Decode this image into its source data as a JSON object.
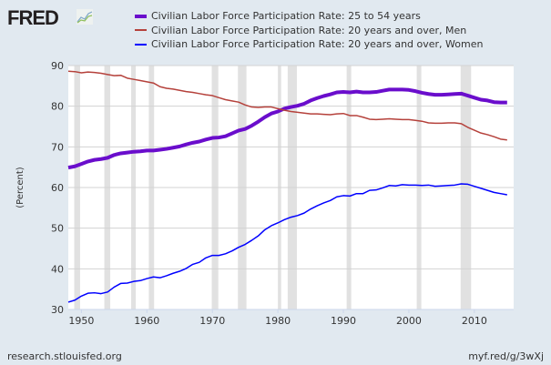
{
  "header": {
    "logo": "FRED"
  },
  "footer": {
    "source": "research.stlouisfed.org",
    "link": "myf.red/g/3wXj"
  },
  "chart_data": {
    "type": "line",
    "title": "",
    "xlabel": "",
    "ylabel": "(Percent)",
    "xlim": [
      1948,
      2016
    ],
    "ylim": [
      30,
      90
    ],
    "yticks": [
      30,
      40,
      50,
      60,
      70,
      80,
      90
    ],
    "xticks": [
      1950,
      1960,
      1970,
      1980,
      1990,
      2000,
      2010
    ],
    "grid": true,
    "legend_position": "top",
    "recessions": [
      [
        1948.9,
        1949.8
      ],
      [
        1953.5,
        1954.4
      ],
      [
        1957.6,
        1958.3
      ],
      [
        1960.3,
        1961.1
      ],
      [
        1969.9,
        1970.9
      ],
      [
        1973.9,
        1975.2
      ],
      [
        1980.0,
        1980.5
      ],
      [
        1981.5,
        1982.9
      ],
      [
        1990.5,
        1991.2
      ],
      [
        2001.2,
        2001.9
      ],
      [
        2007.9,
        2009.5
      ]
    ],
    "x": [
      1948,
      1949,
      1950,
      1951,
      1952,
      1953,
      1954,
      1955,
      1956,
      1957,
      1958,
      1959,
      1960,
      1961,
      1962,
      1963,
      1964,
      1965,
      1966,
      1967,
      1968,
      1969,
      1970,
      1971,
      1972,
      1973,
      1974,
      1975,
      1976,
      1977,
      1978,
      1979,
      1980,
      1981,
      1982,
      1983,
      1984,
      1985,
      1986,
      1987,
      1988,
      1989,
      1990,
      1991,
      1992,
      1993,
      1994,
      1995,
      1996,
      1997,
      1998,
      1999,
      2000,
      2001,
      2002,
      2003,
      2004,
      2005,
      2006,
      2007,
      2008,
      2009,
      2010,
      2011,
      2012,
      2013,
      2014,
      2015
    ],
    "series": [
      {
        "name": "Civilian Labor Force Participation Rate: 25 to 54 years",
        "color": "#6a0dcc",
        "width": 4,
        "values": [
          64.9,
          65.2,
          65.8,
          66.4,
          66.8,
          67.0,
          67.3,
          68.0,
          68.4,
          68.6,
          68.8,
          68.9,
          69.1,
          69.1,
          69.3,
          69.5,
          69.8,
          70.1,
          70.6,
          71.0,
          71.3,
          71.8,
          72.2,
          72.3,
          72.6,
          73.3,
          74.0,
          74.4,
          75.2,
          76.2,
          77.3,
          78.2,
          78.7,
          79.4,
          79.8,
          80.1,
          80.6,
          81.4,
          82.0,
          82.5,
          82.9,
          83.4,
          83.5,
          83.4,
          83.6,
          83.4,
          83.4,
          83.5,
          83.8,
          84.1,
          84.1,
          84.1,
          84.0,
          83.7,
          83.3,
          83.0,
          82.8,
          82.8,
          82.9,
          83.0,
          83.1,
          82.6,
          82.1,
          81.6,
          81.4,
          81.0,
          80.9,
          80.9
        ]
      },
      {
        "name": "Civilian Labor Force Participation Rate: 20 years and over, Men",
        "color": "#b5413b",
        "width": 1.5,
        "values": [
          88.6,
          88.5,
          88.2,
          88.4,
          88.3,
          88.1,
          87.8,
          87.5,
          87.6,
          86.9,
          86.6,
          86.3,
          86.0,
          85.7,
          84.8,
          84.4,
          84.2,
          83.9,
          83.6,
          83.4,
          83.1,
          82.8,
          82.6,
          82.1,
          81.6,
          81.3,
          81.0,
          80.3,
          79.8,
          79.7,
          79.8,
          79.8,
          79.4,
          79.0,
          78.7,
          78.5,
          78.3,
          78.1,
          78.1,
          78.0,
          77.9,
          78.1,
          78.2,
          77.7,
          77.7,
          77.3,
          76.8,
          76.7,
          76.8,
          76.9,
          76.8,
          76.7,
          76.7,
          76.5,
          76.3,
          75.9,
          75.8,
          75.8,
          75.9,
          75.9,
          75.7,
          74.8,
          74.1,
          73.4,
          73.0,
          72.5,
          71.9,
          71.7
        ]
      },
      {
        "name": "Civilian Labor Force Participation Rate: 20 years and over, Women",
        "color": "#0000ff",
        "width": 1.5,
        "values": [
          31.8,
          32.3,
          33.3,
          34.0,
          34.1,
          33.9,
          34.3,
          35.5,
          36.4,
          36.5,
          36.9,
          37.1,
          37.6,
          38.0,
          37.8,
          38.3,
          38.9,
          39.4,
          40.1,
          41.1,
          41.6,
          42.7,
          43.3,
          43.3,
          43.7,
          44.4,
          45.3,
          46.0,
          47.0,
          48.1,
          49.6,
          50.6,
          51.3,
          52.1,
          52.7,
          53.1,
          53.7,
          54.7,
          55.5,
          56.2,
          56.8,
          57.7,
          58.0,
          57.9,
          58.5,
          58.5,
          59.3,
          59.4,
          59.9,
          60.5,
          60.4,
          60.7,
          60.6,
          60.6,
          60.5,
          60.6,
          60.3,
          60.4,
          60.5,
          60.6,
          60.9,
          60.8,
          60.3,
          59.8,
          59.3,
          58.8,
          58.5,
          58.2
        ]
      }
    ]
  }
}
